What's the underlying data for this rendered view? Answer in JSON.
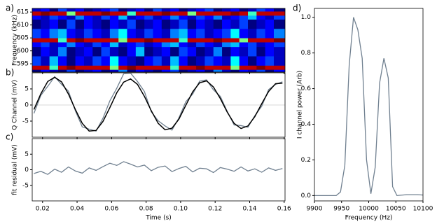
{
  "chart_data": [
    {
      "type": "heatmap",
      "panel_label": "a)",
      "y_label": "Frequency (kHz)",
      "colormap": "jet",
      "xlim": [
        0.014,
        0.1605
      ],
      "ylim": [
        591.8,
        616.4
      ],
      "yticks": [
        595,
        600,
        605,
        610,
        615
      ],
      "x_bins": [
        0.014,
        0.019,
        0.024,
        0.029,
        0.034,
        0.039,
        0.044,
        0.049,
        0.054,
        0.059,
        0.064,
        0.069,
        0.074,
        0.079,
        0.084,
        0.089,
        0.094,
        0.099,
        0.104,
        0.109,
        0.114,
        0.119,
        0.124,
        0.129,
        0.134,
        0.139,
        0.144,
        0.149,
        0.154,
        0.1605
      ],
      "y_bins": [
        591.8,
        592.8,
        594.4,
        598,
        601.6,
        603.4,
        605,
        608.6,
        612.2,
        613.7,
        615.3,
        616.4
      ],
      "values": [
        [
          0.2,
          0.3,
          0.25,
          0.2,
          0.35,
          0.2,
          0.25,
          0.3,
          0.2,
          0.25,
          0.4,
          0.2,
          0.3,
          0.25,
          0.2,
          0.3,
          0.35,
          0.2,
          0.25,
          0.3,
          0.2,
          0.4,
          0.25,
          0.2,
          0.3,
          0.25,
          0.35,
          0.2,
          0.3
        ],
        [
          0.95,
          0.95,
          0.55,
          0.95,
          1,
          0.95,
          0.95,
          0.95,
          0.95,
          0.6,
          0.95,
          1,
          0.95,
          0.95,
          0.95,
          0.95,
          0.55,
          0.95,
          0.95,
          1,
          0.95,
          0.95,
          0.95,
          0.6,
          0.95,
          0.95,
          1,
          0.95,
          0.95
        ],
        [
          0.35,
          0.25,
          0.45,
          0.3,
          0.2,
          0.3,
          0.25,
          0.35,
          0.3,
          0.5,
          0.3,
          0.25,
          0.2,
          0.3,
          0.35,
          0.25,
          0.45,
          0.3,
          0.2,
          0.25,
          0.35,
          0.3,
          0.25,
          0.5,
          0.3,
          0.2,
          0.3,
          0.35,
          0.25
        ],
        [
          0.2,
          0.3,
          0.25,
          0.4,
          0.2,
          0.25,
          0.3,
          0.2,
          0.35,
          0.25,
          0.2,
          0.3,
          0.45,
          0.2,
          0.25,
          0.3,
          0.2,
          0.35,
          0.3,
          0.2,
          0.25,
          0.4,
          0.2,
          0.3,
          0.25,
          0.35,
          0.2,
          0.3,
          0.25
        ],
        [
          0.3,
          0.35,
          0.25,
          0.3,
          0.4,
          0.3,
          0.25,
          0.35,
          0.3,
          0.45,
          0.25,
          0.3,
          0.35,
          0.25,
          0.3,
          0.4,
          0.45,
          0.3,
          0.25,
          0.35,
          0.3,
          0.25,
          0.4,
          0.45,
          0.3,
          0.35,
          0.25,
          0.3,
          0.35
        ],
        [
          0.95,
          0.95,
          0.95,
          0.55,
          0.95,
          1,
          0.95,
          0.95,
          0.95,
          0.95,
          0.6,
          0.95,
          0.95,
          1,
          0.95,
          0.95,
          0.95,
          0.55,
          0.95,
          0.95,
          0.95,
          1,
          0.95,
          0.95,
          0.6,
          0.95,
          0.95,
          0.95,
          1
        ],
        [
          0.35,
          0.3,
          0.4,
          0.45,
          0.3,
          0.25,
          0.35,
          0.3,
          0.25,
          0.4,
          0.5,
          0.3,
          0.25,
          0.35,
          0.3,
          0.25,
          0.4,
          0.45,
          0.3,
          0.35,
          0.25,
          0.3,
          0.35,
          0.5,
          0.3,
          0.25,
          0.35,
          0.3,
          0.4
        ],
        [
          0.2,
          0.25,
          0.3,
          0.2,
          0.35,
          0.2,
          0.3,
          0.25,
          0.2,
          0.3,
          0.25,
          0.35,
          0.2,
          0.25,
          0.3,
          0.2,
          0.25,
          0.35,
          0.2,
          0.3,
          0.25,
          0.2,
          0.3,
          0.25,
          0.35,
          0.2,
          0.25,
          0.3,
          0.2
        ],
        [
          0.3,
          0.25,
          0.35,
          0.3,
          0.25,
          0.4,
          0.3,
          0.25,
          0.35,
          0.3,
          0.45,
          0.25,
          0.3,
          0.35,
          0.25,
          0.3,
          0.4,
          0.3,
          0.25,
          0.35,
          0.3,
          0.4,
          0.25,
          0.3,
          0.35,
          0.45,
          0.3,
          0.25,
          0.35
        ],
        [
          0.95,
          1,
          0.95,
          0.95,
          0.6,
          0.95,
          0.95,
          0.95,
          1,
          0.95,
          0.95,
          0.55,
          0.95,
          0.95,
          0.95,
          1,
          0.95,
          0.95,
          0.6,
          0.95,
          0.95,
          0.95,
          0.95,
          1,
          0.95,
          0.55,
          0.95,
          0.95,
          0.95
        ],
        [
          0.25,
          0.3,
          0.2,
          0.35,
          0.25,
          0.3,
          0.2,
          0.25,
          0.3,
          0.35,
          0.2,
          0.25,
          0.3,
          0.2,
          0.35,
          0.25,
          0.3,
          0.2,
          0.25,
          0.3,
          0.35,
          0.2,
          0.25,
          0.3,
          0.2,
          0.25,
          0.35,
          0.3,
          0.2
        ]
      ]
    },
    {
      "type": "line",
      "panel_label": "b)",
      "y_label": "Q Channel (mV)",
      "xlim": [
        0.014,
        0.1605
      ],
      "ylim": [
        -10,
        10
      ],
      "yticks": [
        -5,
        0,
        5
      ],
      "hline": 0,
      "hline_color": "#d9d9d9",
      "x": [
        0.015,
        0.019,
        0.023,
        0.027,
        0.031,
        0.035,
        0.039,
        0.043,
        0.047,
        0.051,
        0.055,
        0.059,
        0.063,
        0.067,
        0.071,
        0.075,
        0.079,
        0.083,
        0.087,
        0.091,
        0.095,
        0.099,
        0.103,
        0.107,
        0.111,
        0.115,
        0.119,
        0.123,
        0.127,
        0.131,
        0.135,
        0.139,
        0.143,
        0.147,
        0.151,
        0.155,
        0.159
      ],
      "series": [
        {
          "color": "#708090",
          "values": [
            -2.6,
            3.0,
            5.8,
            8.8,
            6.4,
            4.3,
            -1.8,
            -6.8,
            -7.5,
            -8.1,
            -4.1,
            1.3,
            5.2,
            9.7,
            9.9,
            7.3,
            4.2,
            -2.1,
            -4.9,
            -6.5,
            -7.8,
            -4.0,
            1.0,
            3.4,
            7.4,
            7.8,
            4.7,
            2.7,
            -2.0,
            -6.2,
            -6.4,
            -6.9,
            -3.3,
            -0.4,
            4.8,
            6.4,
            7.2
          ]
        },
        {
          "color": "#000000",
          "values": [
            -1.4,
            3.5,
            7.3,
            8.6,
            7.2,
            3.4,
            -1.4,
            -5.7,
            -8.1,
            -7.9,
            -5.1,
            -0.8,
            3.8,
            7.1,
            8.1,
            6.4,
            2.7,
            -1.8,
            -5.7,
            -7.7,
            -7.2,
            -4.4,
            -0.1,
            4.1,
            6.9,
            7.5,
            5.6,
            2.0,
            -2.2,
            -5.7,
            -7.3,
            -6.5,
            -3.6,
            0.4,
            4.2,
            6.6,
            6.8
          ]
        }
      ]
    },
    {
      "type": "line",
      "panel_label": "c)",
      "y_label": "fit residual (mV)",
      "x_label": "Time (s)",
      "xlim": [
        0.014,
        0.1605
      ],
      "ylim": [
        -10,
        10
      ],
      "yticks": [
        -5,
        0,
        5
      ],
      "xticks": [
        0.02,
        0.04,
        0.06,
        0.08,
        {
          "value": 0.1,
          "label": "0.10"
        },
        0.12,
        0.14,
        0.16
      ],
      "x": [
        0.015,
        0.019,
        0.023,
        0.027,
        0.031,
        0.035,
        0.039,
        0.043,
        0.047,
        0.051,
        0.055,
        0.059,
        0.063,
        0.067,
        0.071,
        0.075,
        0.079,
        0.083,
        0.087,
        0.091,
        0.095,
        0.099,
        0.103,
        0.107,
        0.111,
        0.115,
        0.119,
        0.123,
        0.127,
        0.131,
        0.135,
        0.139,
        0.143,
        0.147,
        0.151,
        0.155,
        0.159
      ],
      "series": [
        {
          "color": "#708090",
          "values": [
            -1.2,
            -0.5,
            -1.5,
            0.2,
            -0.8,
            0.9,
            -0.4,
            -1.1,
            0.6,
            -0.2,
            1.0,
            2.1,
            1.4,
            2.6,
            1.8,
            0.9,
            1.5,
            -0.3,
            0.8,
            1.2,
            -0.6,
            0.4,
            1.1,
            -0.7,
            0.5,
            0.3,
            -0.9,
            0.7,
            0.2,
            -0.5,
            0.9,
            -0.4,
            0.3,
            -0.8,
            0.6,
            -0.2,
            0.4
          ]
        }
      ]
    },
    {
      "type": "line",
      "panel_label": "d)",
      "y_label": "I channel power (Arb)",
      "x_label": "Frequency (Hz)",
      "xlim": [
        9900,
        10100
      ],
      "ylim": [
        -0.03,
        1.05
      ],
      "xticks": [
        9900,
        9950,
        10000,
        10050,
        10100
      ],
      "yticks": [
        {
          "value": 0,
          "label": "0.0"
        },
        0.2,
        0.4,
        0.6,
        0.8,
        {
          "value": 1,
          "label": "1.0"
        }
      ],
      "x": [
        9900,
        9940,
        9948,
        9956,
        9964,
        9972,
        9980,
        9988,
        9996,
        10004,
        10012,
        10020,
        10028,
        10036,
        10044,
        10052,
        10070,
        10090,
        10100
      ],
      "series": [
        {
          "color": "#708090",
          "values": [
            0,
            0,
            0.02,
            0.17,
            0.73,
            1.0,
            0.93,
            0.77,
            0.2,
            0.01,
            0.16,
            0.63,
            0.77,
            0.66,
            0.05,
            0.0,
            0.005,
            0.005,
            0.003
          ]
        }
      ]
    }
  ]
}
